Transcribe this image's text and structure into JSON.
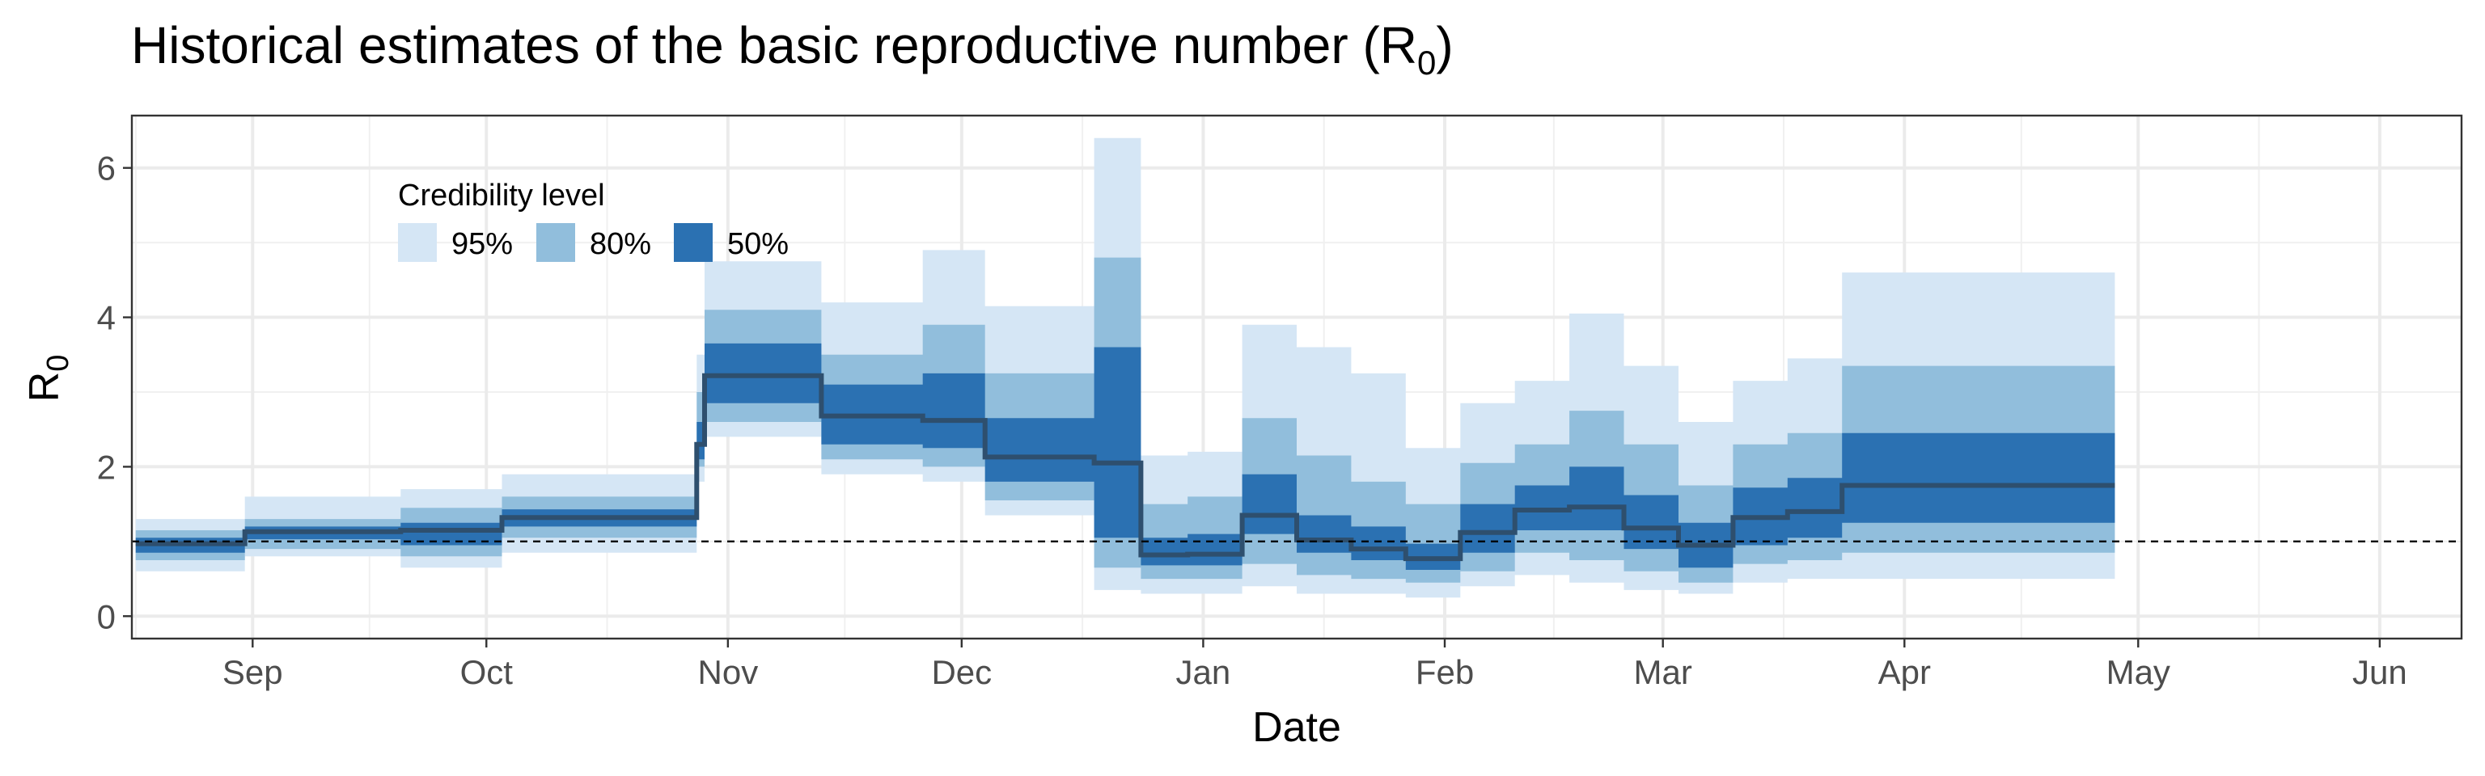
{
  "chart_data": {
    "type": "area",
    "title": "Historical estimates of the basic reproductive number (R",
    "title_subscript": "0",
    "title_suffix": ")",
    "xlabel": "Date",
    "ylabel": "R",
    "ylabel_subscript": "0",
    "x_ticks": [
      "Sep",
      "Oct",
      "Nov",
      "Dec",
      "Jan",
      "Feb",
      "Mar",
      "Apr",
      "May",
      "Jun"
    ],
    "y_ticks": [
      "0",
      "2",
      "4",
      "6"
    ],
    "y_tick_values": [
      0,
      2,
      4,
      6
    ],
    "xlim": [
      -15.5,
      283.5
    ],
    "ylim": [
      -0.3,
      6.7
    ],
    "x_unit": "days from Sep 1 (tick positions: Sep 1, Oct 1, Nov 1, Dec 1, Jan 1, Feb 1, Mar 1, Apr 1, May 1, Jun 1)",
    "x_tick_positions": [
      0,
      30,
      61,
      91,
      122,
      153,
      181,
      212,
      242,
      273
    ],
    "reference_line": 1,
    "grid": true,
    "legend": {
      "title": "Credibility level",
      "position": "top-left",
      "items": [
        {
          "label": "95%",
          "color": "#d5e6f5"
        },
        {
          "label": "80%",
          "color": "#91bedc"
        },
        {
          "label": "50%",
          "color": "#2b71b2"
        }
      ]
    },
    "colors": {
      "band95": "#d5e6f5",
      "band80": "#91bedc",
      "band50": "#2b71b2",
      "median": "#2e4f6e",
      "reference": "#000000"
    },
    "steps": [
      {
        "start": -15,
        "end": -1,
        "median": 0.97,
        "lo50": 0.85,
        "hi50": 1.05,
        "lo80": 0.75,
        "hi80": 1.15,
        "lo95": 0.6,
        "hi95": 1.3
      },
      {
        "start": -1,
        "end": 19,
        "median": 1.13,
        "lo50": 1.03,
        "hi50": 1.2,
        "lo80": 0.9,
        "hi80": 1.3,
        "lo95": 0.8,
        "hi95": 1.6
      },
      {
        "start": 19,
        "end": 32,
        "median": 1.15,
        "lo50": 0.95,
        "hi50": 1.25,
        "lo80": 0.8,
        "hi80": 1.45,
        "lo95": 0.65,
        "hi95": 1.7
      },
      {
        "start": 32,
        "end": 57,
        "median": 1.32,
        "lo50": 1.2,
        "hi50": 1.43,
        "lo80": 1.05,
        "hi80": 1.6,
        "lo95": 0.85,
        "hi95": 1.9
      },
      {
        "start": 57,
        "end": 58,
        "median": 2.3,
        "lo50": 2.1,
        "hi50": 2.6,
        "lo80": 2.0,
        "hi80": 3.0,
        "lo95": 1.8,
        "hi95": 3.5
      },
      {
        "start": 58,
        "end": 73,
        "median": 3.22,
        "lo50": 2.85,
        "hi50": 3.65,
        "lo80": 2.6,
        "hi80": 4.1,
        "lo95": 2.4,
        "hi95": 4.75
      },
      {
        "start": 73,
        "end": 86,
        "median": 2.68,
        "lo50": 2.3,
        "hi50": 3.1,
        "lo80": 2.1,
        "hi80": 3.5,
        "lo95": 1.9,
        "hi95": 4.2
      },
      {
        "start": 86,
        "end": 94,
        "median": 2.62,
        "lo50": 2.25,
        "hi50": 3.25,
        "lo80": 2.0,
        "hi80": 3.9,
        "lo95": 1.8,
        "hi95": 4.9
      },
      {
        "start": 94,
        "end": 108,
        "median": 2.13,
        "lo50": 1.8,
        "hi50": 2.65,
        "lo80": 1.55,
        "hi80": 3.25,
        "lo95": 1.35,
        "hi95": 4.15
      },
      {
        "start": 108,
        "end": 114,
        "median": 2.05,
        "lo50": 1.05,
        "hi50": 3.6,
        "lo80": 0.65,
        "hi80": 4.8,
        "lo95": 0.35,
        "hi95": 6.4
      },
      {
        "start": 114,
        "end": 120,
        "median": 0.82,
        "lo50": 0.68,
        "hi50": 1.05,
        "lo80": 0.5,
        "hi80": 1.5,
        "lo95": 0.3,
        "hi95": 2.15
      },
      {
        "start": 120,
        "end": 127,
        "median": 0.83,
        "lo50": 0.68,
        "hi50": 1.1,
        "lo80": 0.5,
        "hi80": 1.6,
        "lo95": 0.3,
        "hi95": 2.2
      },
      {
        "start": 127,
        "end": 134,
        "median": 1.35,
        "lo50": 1.1,
        "hi50": 1.9,
        "lo80": 0.7,
        "hi80": 2.65,
        "lo95": 0.4,
        "hi95": 3.9
      },
      {
        "start": 134,
        "end": 141,
        "median": 1.02,
        "lo50": 0.85,
        "hi50": 1.35,
        "lo80": 0.55,
        "hi80": 2.15,
        "lo95": 0.3,
        "hi95": 3.6
      },
      {
        "start": 141,
        "end": 148,
        "median": 0.9,
        "lo50": 0.75,
        "hi50": 1.2,
        "lo80": 0.5,
        "hi80": 1.8,
        "lo95": 0.3,
        "hi95": 3.25
      },
      {
        "start": 148,
        "end": 155,
        "median": 0.77,
        "lo50": 0.62,
        "hi50": 0.97,
        "lo80": 0.45,
        "hi80": 1.5,
        "lo95": 0.25,
        "hi95": 2.25
      },
      {
        "start": 155,
        "end": 162,
        "median": 1.12,
        "lo50": 0.85,
        "hi50": 1.5,
        "lo80": 0.6,
        "hi80": 2.05,
        "lo95": 0.4,
        "hi95": 2.85
      },
      {
        "start": 162,
        "end": 169,
        "median": 1.42,
        "lo50": 1.15,
        "hi50": 1.75,
        "lo80": 0.85,
        "hi80": 2.3,
        "lo95": 0.55,
        "hi95": 3.15
      },
      {
        "start": 169,
        "end": 176,
        "median": 1.46,
        "lo50": 1.15,
        "hi50": 2.0,
        "lo80": 0.75,
        "hi80": 2.75,
        "lo95": 0.45,
        "hi95": 4.05
      },
      {
        "start": 176,
        "end": 183,
        "median": 1.18,
        "lo50": 0.9,
        "hi50": 1.62,
        "lo80": 0.6,
        "hi80": 2.3,
        "lo95": 0.35,
        "hi95": 3.35
      },
      {
        "start": 183,
        "end": 190,
        "median": 0.95,
        "lo50": 0.65,
        "hi50": 1.25,
        "lo80": 0.45,
        "hi80": 1.75,
        "lo95": 0.3,
        "hi95": 2.6
      },
      {
        "start": 190,
        "end": 197,
        "median": 1.32,
        "lo50": 0.95,
        "hi50": 1.72,
        "lo80": 0.7,
        "hi80": 2.3,
        "lo95": 0.45,
        "hi95": 3.15
      },
      {
        "start": 197,
        "end": 204,
        "median": 1.4,
        "lo50": 1.05,
        "hi50": 1.85,
        "lo80": 0.75,
        "hi80": 2.45,
        "lo95": 0.5,
        "hi95": 3.45
      },
      {
        "start": 204,
        "end": 239,
        "median": 1.75,
        "lo50": 1.25,
        "hi50": 2.45,
        "lo80": 0.85,
        "hi80": 3.35,
        "lo95": 0.5,
        "hi95": 4.6
      }
    ]
  }
}
